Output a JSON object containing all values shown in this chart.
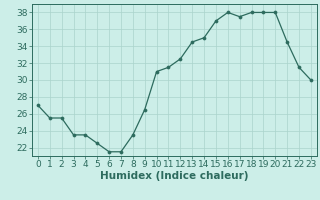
{
  "x": [
    0,
    1,
    2,
    3,
    4,
    5,
    6,
    7,
    8,
    9,
    10,
    11,
    12,
    13,
    14,
    15,
    16,
    17,
    18,
    19,
    20,
    21,
    22,
    23
  ],
  "y": [
    27,
    25.5,
    25.5,
    23.5,
    23.5,
    22.5,
    21.5,
    21.5,
    23.5,
    26.5,
    31,
    31.5,
    32.5,
    34.5,
    35,
    37,
    38,
    37.5,
    38,
    38,
    38,
    34.5,
    31.5,
    30
  ],
  "line_color": "#2d6b5e",
  "marker_color": "#2d6b5e",
  "bg_color": "#cceee8",
  "grid_color": "#aad4cc",
  "xlabel": "Humidex (Indice chaleur)",
  "ylim": [
    21,
    39
  ],
  "xlim": [
    -0.5,
    23.5
  ],
  "yticks": [
    22,
    24,
    26,
    28,
    30,
    32,
    34,
    36,
    38
  ],
  "xticks": [
    0,
    1,
    2,
    3,
    4,
    5,
    6,
    7,
    8,
    9,
    10,
    11,
    12,
    13,
    14,
    15,
    16,
    17,
    18,
    19,
    20,
    21,
    22,
    23
  ],
  "tick_fontsize": 6.5,
  "xlabel_fontsize": 7.5
}
